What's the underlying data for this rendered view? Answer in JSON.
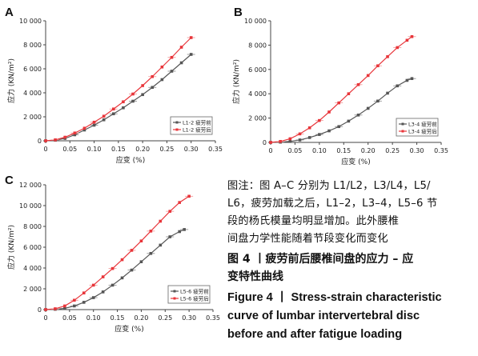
{
  "caption": {
    "note_lines": [
      "图注：图 A–C 分别为 L1/L2，L3/L4，L5/",
      "L6，疲劳加载之后，L1–2，L3–4，L5–6 节",
      "段的杨氏模量均明显增加。此外腰椎",
      "间盘力学性能随着节段变化而变化"
    ],
    "title_cn_lines": [
      "图 4 丨疲劳前后腰椎间盘的应力 – 应",
      "变特性曲线"
    ],
    "title_en_lines": [
      "Figure 4 丨 Stress-strain characteristic",
      "curve of lumbar intervertebral disc",
      "before and after fatigue loading"
    ]
  },
  "colors": {
    "before": "#555555",
    "after": "#e8353a",
    "errorbar_before": "#888888",
    "errorbar_after": "#f08f8f",
    "axis": "#444444"
  },
  "chart_data": [
    {
      "panel": "A",
      "type": "line",
      "xlabel": "应变 (%)",
      "ylabel": "应力 (KN/m²)",
      "xlim": [
        0,
        0.35
      ],
      "ylim": [
        0,
        10000
      ],
      "xticks": [
        "0",
        "0.05",
        "0.10",
        "0.15",
        "0.20",
        "0.25",
        "0.30",
        "0.35"
      ],
      "yticks": [
        "0",
        "2 000",
        "4 000",
        "6 000",
        "8 000",
        "10 000"
      ],
      "legend_position": "bottom-right",
      "series": [
        {
          "name": "L1-2 疲劳前",
          "role": "before",
          "x": [
            0,
            0.02,
            0.04,
            0.06,
            0.08,
            0.1,
            0.12,
            0.14,
            0.16,
            0.18,
            0.2,
            0.22,
            0.24,
            0.26,
            0.28,
            0.3
          ],
          "y": [
            0,
            50,
            200,
            500,
            900,
            1300,
            1750,
            2250,
            2750,
            3300,
            3850,
            4450,
            5100,
            5800,
            6500,
            7200
          ]
        },
        {
          "name": "L1-2 疲劳后",
          "role": "after",
          "x": [
            0,
            0.02,
            0.04,
            0.06,
            0.08,
            0.1,
            0.12,
            0.14,
            0.16,
            0.18,
            0.2,
            0.22,
            0.24,
            0.26,
            0.28,
            0.3
          ],
          "y": [
            0,
            80,
            300,
            650,
            1050,
            1550,
            2050,
            2650,
            3250,
            3900,
            4600,
            5350,
            6150,
            6950,
            7800,
            8600
          ]
        }
      ]
    },
    {
      "panel": "B",
      "type": "line",
      "xlabel": "应变 (%)",
      "ylabel": "应力 (KN/m²)",
      "xlim": [
        0,
        0.35
      ],
      "ylim": [
        0,
        10000
      ],
      "xticks": [
        "0",
        "0.05",
        "0.10",
        "0.15",
        "0.20",
        "0.25",
        "0.30",
        "0.35"
      ],
      "yticks": [
        "0",
        "2 000",
        "4 000",
        "6 000",
        "8 000",
        "10 000"
      ],
      "legend_position": "bottom-right",
      "series": [
        {
          "name": "L3-4 疲劳前",
          "role": "before",
          "x": [
            0,
            0.02,
            0.04,
            0.06,
            0.08,
            0.1,
            0.12,
            0.14,
            0.16,
            0.18,
            0.2,
            0.22,
            0.24,
            0.26,
            0.28,
            0.29
          ],
          "y": [
            0,
            20,
            80,
            200,
            400,
            650,
            950,
            1300,
            1750,
            2250,
            2800,
            3400,
            4050,
            4650,
            5100,
            5250
          ]
        },
        {
          "name": "L3-4 疲劳后",
          "role": "after",
          "x": [
            0,
            0.02,
            0.04,
            0.06,
            0.08,
            0.1,
            0.12,
            0.14,
            0.16,
            0.18,
            0.2,
            0.22,
            0.24,
            0.26,
            0.28,
            0.29
          ],
          "y": [
            0,
            80,
            300,
            700,
            1200,
            1800,
            2500,
            3250,
            4000,
            4750,
            5500,
            6300,
            7050,
            7800,
            8400,
            8700
          ]
        }
      ]
    },
    {
      "panel": "C",
      "type": "line",
      "xlabel": "应变 (%)",
      "ylabel": "应力 (KN/m²)",
      "xlim": [
        0,
        0.35
      ],
      "ylim": [
        0,
        12000
      ],
      "xticks": [
        "0",
        "0.05",
        "0.10",
        "0.15",
        "0.20",
        "0.25",
        "0.30",
        "0.35"
      ],
      "yticks": [
        "0",
        "2 000",
        "4 000",
        "6 000",
        "8 000",
        "10 000",
        "12 000"
      ],
      "legend_position": "bottom-right",
      "series": [
        {
          "name": "L5-6 疲劳前",
          "role": "before",
          "x": [
            0,
            0.02,
            0.04,
            0.06,
            0.08,
            0.1,
            0.12,
            0.14,
            0.16,
            0.18,
            0.2,
            0.22,
            0.24,
            0.26,
            0.28,
            0.29
          ],
          "y": [
            0,
            30,
            120,
            350,
            700,
            1150,
            1700,
            2350,
            3050,
            3800,
            4600,
            5400,
            6200,
            7000,
            7500,
            7700
          ]
        },
        {
          "name": "L5-6 疲劳后",
          "role": "after",
          "x": [
            0,
            0.02,
            0.04,
            0.06,
            0.08,
            0.1,
            0.12,
            0.14,
            0.16,
            0.18,
            0.2,
            0.22,
            0.24,
            0.26,
            0.28,
            0.3
          ],
          "y": [
            0,
            80,
            350,
            900,
            1600,
            2350,
            3150,
            3950,
            4800,
            5700,
            6600,
            7550,
            8500,
            9450,
            10300,
            10900
          ]
        }
      ]
    }
  ]
}
